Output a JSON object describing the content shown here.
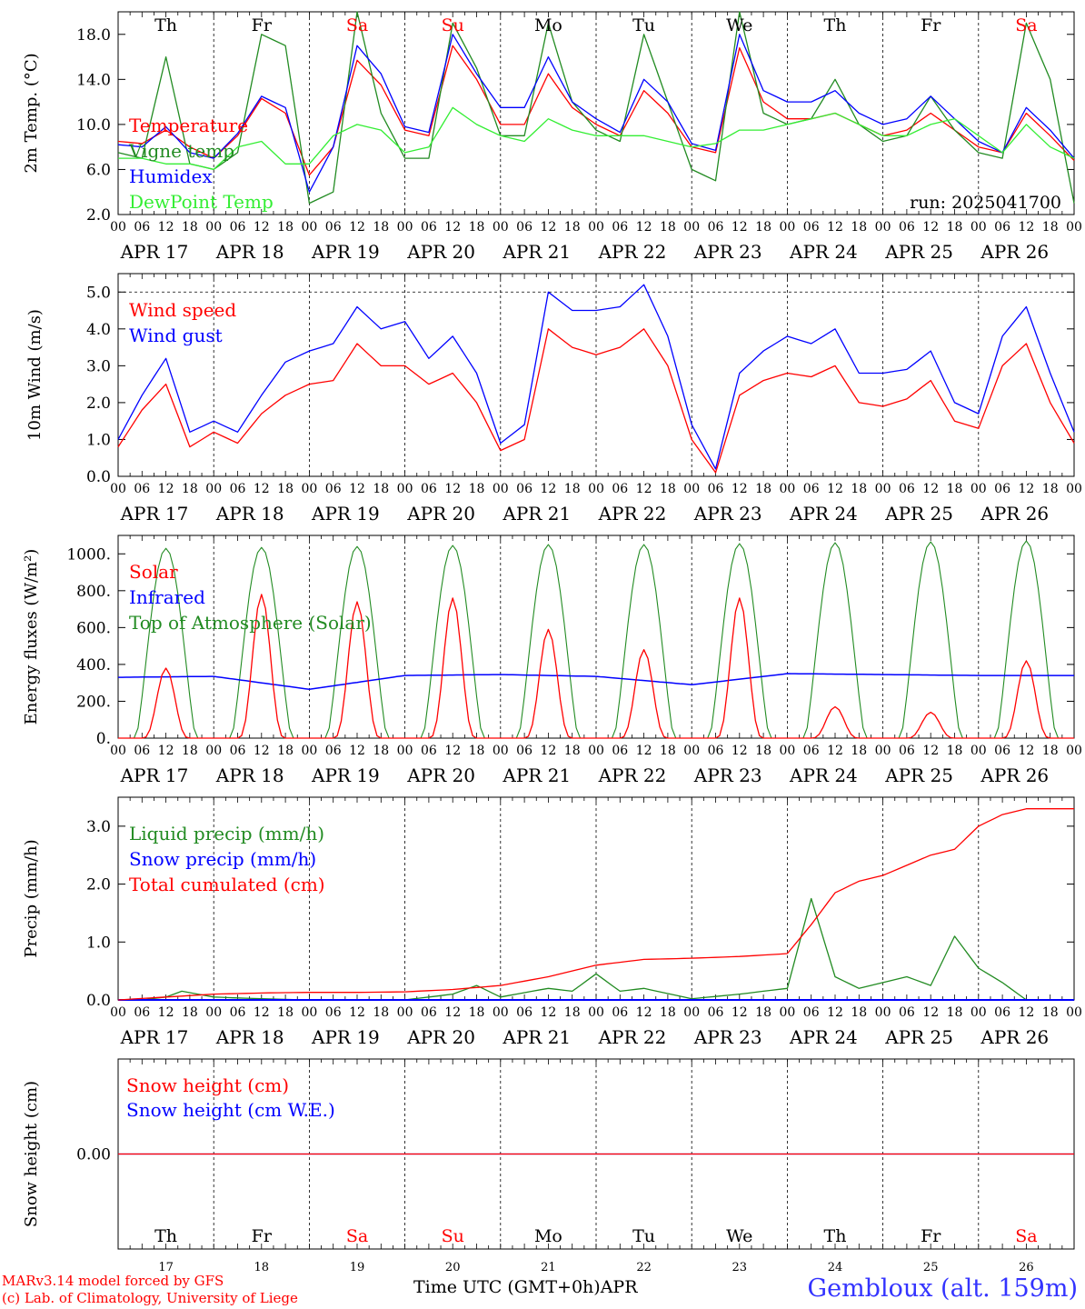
{
  "site": "Gembloux (alt. 159m)",
  "run_label": "run: 2025041700",
  "credits": [
    "MARv3.14 model forced by GFS",
    "(c) Lab. of Climatology, University of Liege"
  ],
  "time_axis": {
    "label": "Time UTC (GMT+0h)",
    "month": "APR",
    "hour_ticks": [
      "00",
      "06",
      "12",
      "18"
    ],
    "day_labels": [
      "APR 17",
      "APR 18",
      "APR 19",
      "APR 20",
      "APR 21",
      "APR 22",
      "APR 23",
      "APR 24",
      "APR 25",
      "APR 26"
    ],
    "day_numbers": [
      "17",
      "18",
      "19",
      "20",
      "21",
      "22",
      "23",
      "24",
      "25",
      "26"
    ],
    "weekdays": [
      "Th",
      "Fr",
      "Sa",
      "Su",
      "Mo",
      "Tu",
      "We",
      "Th",
      "Fr",
      "Sa"
    ],
    "weekend_color": "#ff0000"
  },
  "colors": {
    "red": "#ff0000",
    "darkgreen": "#228b22",
    "blue": "#0000ff",
    "lightgreen": "#33ee33"
  },
  "chart_data": [
    {
      "id": "temp",
      "type": "line",
      "ylabel": "2m Temp. (°C)",
      "ylim": [
        2.0,
        20.0
      ],
      "yticks": [
        "2.0",
        "6.0",
        "10.0",
        "14.0",
        "18.0"
      ],
      "x_unit": "hours since APR 17 00 UTC",
      "x": [
        0,
        6,
        12,
        18,
        24,
        30,
        36,
        42,
        48,
        54,
        60,
        66,
        72,
        78,
        84,
        90,
        96,
        102,
        108,
        114,
        120,
        126,
        132,
        138,
        144,
        150,
        156,
        162,
        168,
        174,
        180,
        186,
        192,
        198,
        204,
        210,
        216,
        222,
        228,
        234,
        240
      ],
      "series": [
        {
          "name": "Temperature",
          "color": "#ff0000",
          "values": [
            8.5,
            8.3,
            9.5,
            8.0,
            7.0,
            9.0,
            12.3,
            11.0,
            5.5,
            8.0,
            15.7,
            13.5,
            9.5,
            9.0,
            17.0,
            14.0,
            10.0,
            10.0,
            14.5,
            11.5,
            10.0,
            9.0,
            13.0,
            11.0,
            8.0,
            7.5,
            16.8,
            12.0,
            10.5,
            10.5,
            11.0,
            10.0,
            9.0,
            9.5,
            11.0,
            9.5,
            8.0,
            7.5,
            11.0,
            9.0,
            6.8
          ]
        },
        {
          "name": "Vigne temp",
          "color": "#228b22",
          "values": [
            7.5,
            7.0,
            16.0,
            6.5,
            6.0,
            7.5,
            18.0,
            17.0,
            3.0,
            4.0,
            20.0,
            11.0,
            7.0,
            7.0,
            19.0,
            15.0,
            9.0,
            9.0,
            19.0,
            12.0,
            9.5,
            8.5,
            18.0,
            12.0,
            6.0,
            5.0,
            20.0,
            11.0,
            10.0,
            10.5,
            14.0,
            10.0,
            8.5,
            9.0,
            12.5,
            9.5,
            7.5,
            7.0,
            19.0,
            14.0,
            3.0
          ]
        },
        {
          "name": "Humidex",
          "color": "#0000ff",
          "values": [
            8.2,
            8.0,
            9.8,
            7.5,
            7.0,
            9.2,
            12.5,
            11.5,
            4.0,
            8.0,
            17.0,
            14.5,
            9.8,
            9.3,
            18.0,
            14.5,
            11.5,
            11.5,
            16.0,
            12.0,
            10.5,
            9.3,
            14.0,
            12.0,
            8.3,
            7.7,
            18.0,
            13.0,
            12.0,
            12.0,
            13.0,
            11.0,
            10.0,
            10.5,
            12.5,
            10.5,
            8.5,
            7.5,
            11.5,
            9.5,
            7.0
          ]
        },
        {
          "name": "DewPoint Temp",
          "color": "#33ee33",
          "values": [
            7.0,
            7.0,
            6.5,
            6.5,
            6.0,
            8.0,
            8.5,
            6.5,
            6.5,
            9.0,
            10.0,
            9.5,
            7.5,
            8.0,
            11.5,
            10.0,
            9.0,
            8.5,
            10.5,
            9.5,
            9.0,
            9.0,
            9.0,
            8.5,
            8.0,
            8.3,
            9.5,
            9.5,
            10.0,
            10.5,
            11.0,
            10.0,
            9.0,
            9.0,
            10.0,
            10.5,
            9.0,
            7.5,
            10.0,
            8.0,
            7.0
          ]
        }
      ]
    },
    {
      "id": "wind",
      "type": "line",
      "ylabel": "10m Wind (m/s)",
      "ylim": [
        0.0,
        5.5
      ],
      "yticks": [
        "0.0",
        "1.0",
        "2.0",
        "3.0",
        "4.0",
        "5.0"
      ],
      "ref_line": 5.0,
      "x_unit": "hours since APR 17 00 UTC",
      "x": [
        0,
        6,
        12,
        18,
        24,
        30,
        36,
        42,
        48,
        54,
        60,
        66,
        72,
        78,
        84,
        90,
        96,
        102,
        108,
        114,
        120,
        126,
        132,
        138,
        144,
        150,
        156,
        162,
        168,
        174,
        180,
        186,
        192,
        198,
        204,
        210,
        216,
        222,
        228,
        234,
        240
      ],
      "series": [
        {
          "name": "Wind speed",
          "color": "#ff0000",
          "values": [
            0.8,
            1.8,
            2.5,
            0.8,
            1.2,
            0.9,
            1.7,
            2.2,
            2.5,
            2.6,
            3.6,
            3.0,
            3.0,
            2.5,
            2.8,
            2.0,
            0.7,
            1.0,
            4.0,
            3.5,
            3.3,
            3.5,
            4.0,
            3.0,
            1.0,
            0.1,
            2.2,
            2.6,
            2.8,
            2.7,
            3.0,
            2.0,
            1.9,
            2.1,
            2.6,
            1.5,
            1.3,
            3.0,
            3.6,
            2.0,
            0.9
          ]
        },
        {
          "name": "Wind gust",
          "color": "#0000ff",
          "values": [
            1.0,
            2.2,
            3.2,
            1.2,
            1.5,
            1.2,
            2.2,
            3.1,
            3.4,
            3.6,
            4.6,
            4.0,
            4.2,
            3.2,
            3.8,
            2.8,
            0.9,
            1.4,
            5.0,
            4.5,
            4.5,
            4.6,
            5.2,
            3.8,
            1.4,
            0.2,
            2.8,
            3.4,
            3.8,
            3.6,
            4.0,
            2.8,
            2.8,
            2.9,
            3.4,
            2.0,
            1.7,
            3.8,
            4.6,
            2.8,
            1.2
          ]
        }
      ]
    },
    {
      "id": "energy",
      "type": "line",
      "ylabel": "Energy fluxes (W/m²)",
      "ylim": [
        0,
        1100
      ],
      "yticks": [
        "0.",
        "200.",
        "400.",
        "600.",
        "800.",
        "1000."
      ],
      "x_unit": "hours since APR 17 00 UTC",
      "solar_toa_peaks": [
        1030,
        1035,
        1040,
        1045,
        1050,
        1050,
        1055,
        1060,
        1065,
        1070
      ],
      "solar_surface_peaks": [
        380,
        780,
        740,
        760,
        590,
        480,
        760,
        170,
        140,
        420
      ],
      "infrared_daily": [
        330,
        335,
        265,
        340,
        345,
        335,
        290,
        350,
        345,
        340
      ],
      "series": [
        {
          "name": "Solar",
          "color": "#ff0000"
        },
        {
          "name": "Infrared",
          "color": "#0000ff"
        },
        {
          "name": "Top of Atmosphere (Solar)",
          "color": "#228b22"
        }
      ]
    },
    {
      "id": "precip",
      "type": "line",
      "ylabel": "Precip (mm/h)",
      "ylim": [
        0.0,
        3.5
      ],
      "yticks": [
        "0.0",
        "1.0",
        "2.0",
        "3.0"
      ],
      "x_unit": "hours since APR 17 00 UTC",
      "series": [
        {
          "name": "Liquid precip (mm/h)",
          "color": "#228b22",
          "x": [
            0,
            6,
            12,
            16,
            20,
            24,
            36,
            48,
            72,
            84,
            90,
            96,
            108,
            114,
            120,
            126,
            132,
            144,
            156,
            168,
            174,
            180,
            186,
            192,
            198,
            204,
            210,
            216,
            222,
            228,
            234,
            240
          ],
          "values": [
            0,
            0,
            0.05,
            0.15,
            0.1,
            0.05,
            0.02,
            0,
            0,
            0.1,
            0.25,
            0.05,
            0.2,
            0.15,
            0.45,
            0.15,
            0.2,
            0.02,
            0.1,
            0.2,
            1.75,
            0.4,
            0.2,
            0.3,
            0.4,
            0.25,
            1.1,
            0.55,
            0.3,
            0,
            0,
            0
          ]
        },
        {
          "name": "Snow precip (mm/h)",
          "color": "#0000ff",
          "x": [
            0,
            240
          ],
          "values": [
            0,
            0
          ]
        },
        {
          "name": "Total cumulated (cm)",
          "color": "#ff0000",
          "x": [
            0,
            12,
            24,
            36,
            48,
            60,
            72,
            84,
            96,
            108,
            120,
            132,
            144,
            156,
            168,
            174,
            180,
            186,
            192,
            204,
            210,
            216,
            222,
            228,
            240
          ],
          "values": [
            0,
            0.05,
            0.1,
            0.12,
            0.13,
            0.13,
            0.14,
            0.18,
            0.25,
            0.4,
            0.6,
            0.7,
            0.72,
            0.75,
            0.8,
            1.3,
            1.85,
            2.05,
            2.15,
            2.5,
            2.6,
            3.0,
            3.2,
            3.3,
            3.3
          ]
        }
      ]
    },
    {
      "id": "snow",
      "type": "line",
      "ylabel": "Snow height (cm)",
      "ylim": [
        -1.0,
        1.0
      ],
      "yticks": [
        "0.00"
      ],
      "x_unit": "hours since APR 17 00 UTC",
      "series": [
        {
          "name": "Snow height (cm)",
          "color": "#ff0000",
          "x": [
            0,
            240
          ],
          "values": [
            0,
            0
          ]
        },
        {
          "name": "Snow height (cm W.E.)",
          "color": "#0000ff",
          "x": [
            0,
            240
          ],
          "values": [
            0,
            0
          ]
        }
      ]
    }
  ]
}
